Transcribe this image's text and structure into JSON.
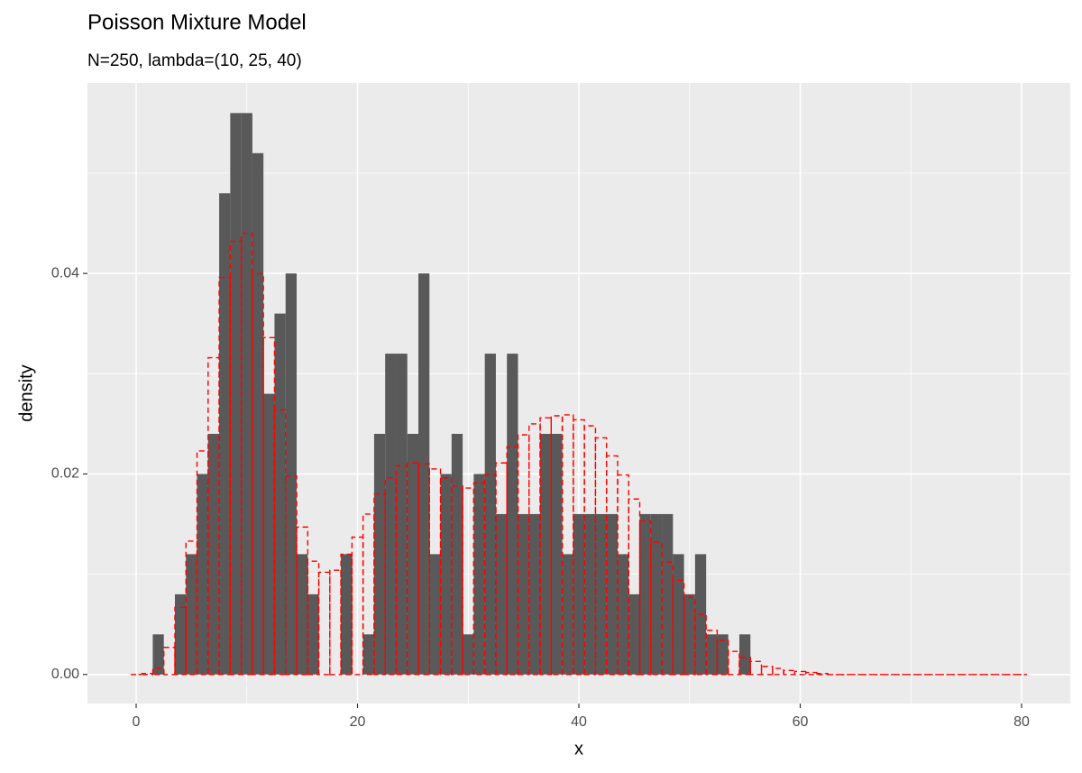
{
  "chart_data": {
    "type": "histogram",
    "title": "Poisson Mixture Model",
    "subtitle": "N=250, lambda=(10, 25, 40)",
    "xlabel": "x",
    "ylabel": "density",
    "x": [
      0,
      1,
      2,
      3,
      4,
      5,
      6,
      7,
      8,
      9,
      10,
      11,
      12,
      13,
      14,
      15,
      16,
      17,
      18,
      19,
      20,
      21,
      22,
      23,
      24,
      25,
      26,
      27,
      28,
      29,
      30,
      31,
      32,
      33,
      34,
      35,
      36,
      37,
      38,
      39,
      40,
      41,
      42,
      43,
      44,
      45,
      46,
      47,
      48,
      49,
      50,
      51,
      52,
      53,
      54,
      55,
      56,
      57,
      58,
      59,
      60,
      61,
      62,
      63,
      64,
      65,
      66,
      67,
      68,
      69,
      70,
      71,
      72,
      73,
      74,
      75,
      76,
      77,
      78,
      79,
      80
    ],
    "series": [
      {
        "color": "#595959",
        "style": "solid",
        "values": [
          0,
          0,
          0.004,
          0,
          0.008,
          0.012,
          0.02,
          0.024,
          0.048,
          0.056,
          0.056,
          0.052,
          0.028,
          0.036,
          0.04,
          0.012,
          0.008,
          0,
          0,
          0.012,
          0,
          0.004,
          0.024,
          0.032,
          0.032,
          0.024,
          0.04,
          0.012,
          0.02,
          0.024,
          0.004,
          0.02,
          0.032,
          0.016,
          0.032,
          0.016,
          0.016,
          0.024,
          0.024,
          0.012,
          0.016,
          0.016,
          0.016,
          0.016,
          0.012,
          0.008,
          0.016,
          0.016,
          0.016,
          0.012,
          0.008,
          0.012,
          0.004,
          0.004,
          0,
          0.004,
          0,
          0,
          0,
          0,
          0,
          0,
          0,
          0,
          0,
          0,
          0,
          0,
          0,
          0,
          0,
          0,
          0,
          0,
          0,
          0,
          0,
          0,
          0,
          0,
          0
        ]
      },
      {
        "color": "#ff0000",
        "style": "dashed",
        "values": [
          0,
          0.0001,
          0.0006,
          0.0027,
          0.0067,
          0.0133,
          0.0223,
          0.0316,
          0.0396,
          0.0432,
          0.044,
          0.04,
          0.0336,
          0.0264,
          0.0198,
          0.0147,
          0.0113,
          0.0102,
          0.0104,
          0.012,
          0.0137,
          0.016,
          0.018,
          0.0196,
          0.0208,
          0.0211,
          0.021,
          0.0205,
          0.0196,
          0.0188,
          0.0186,
          0.0191,
          0.0199,
          0.0211,
          0.0227,
          0.0239,
          0.025,
          0.0256,
          0.0258,
          0.0259,
          0.0254,
          0.0248,
          0.0236,
          0.0218,
          0.0199,
          0.0175,
          0.0153,
          0.0132,
          0.0112,
          0.0094,
          0.0077,
          0.006,
          0.0044,
          0.0034,
          0.0023,
          0.0017,
          0.0013,
          0.0008,
          0.0006,
          0.0004,
          0.0003,
          0.0002,
          0.0001,
          0,
          0,
          0,
          0,
          0,
          0,
          0,
          0,
          0,
          0,
          0,
          0,
          0,
          0,
          0,
          0,
          0,
          0
        ]
      }
    ],
    "xlim": [
      -4.4,
      84.4
    ],
    "ylim": [
      -0.0029,
      0.059
    ],
    "xticks": [
      0,
      20,
      40,
      60,
      80
    ],
    "yticks": [
      {
        "value": 0,
        "label": "0.00"
      },
      {
        "value": 0.02,
        "label": "0.02"
      },
      {
        "value": 0.04,
        "label": "0.04"
      }
    ],
    "grid": true,
    "minor_grid": true,
    "background": "#ebebeb"
  }
}
